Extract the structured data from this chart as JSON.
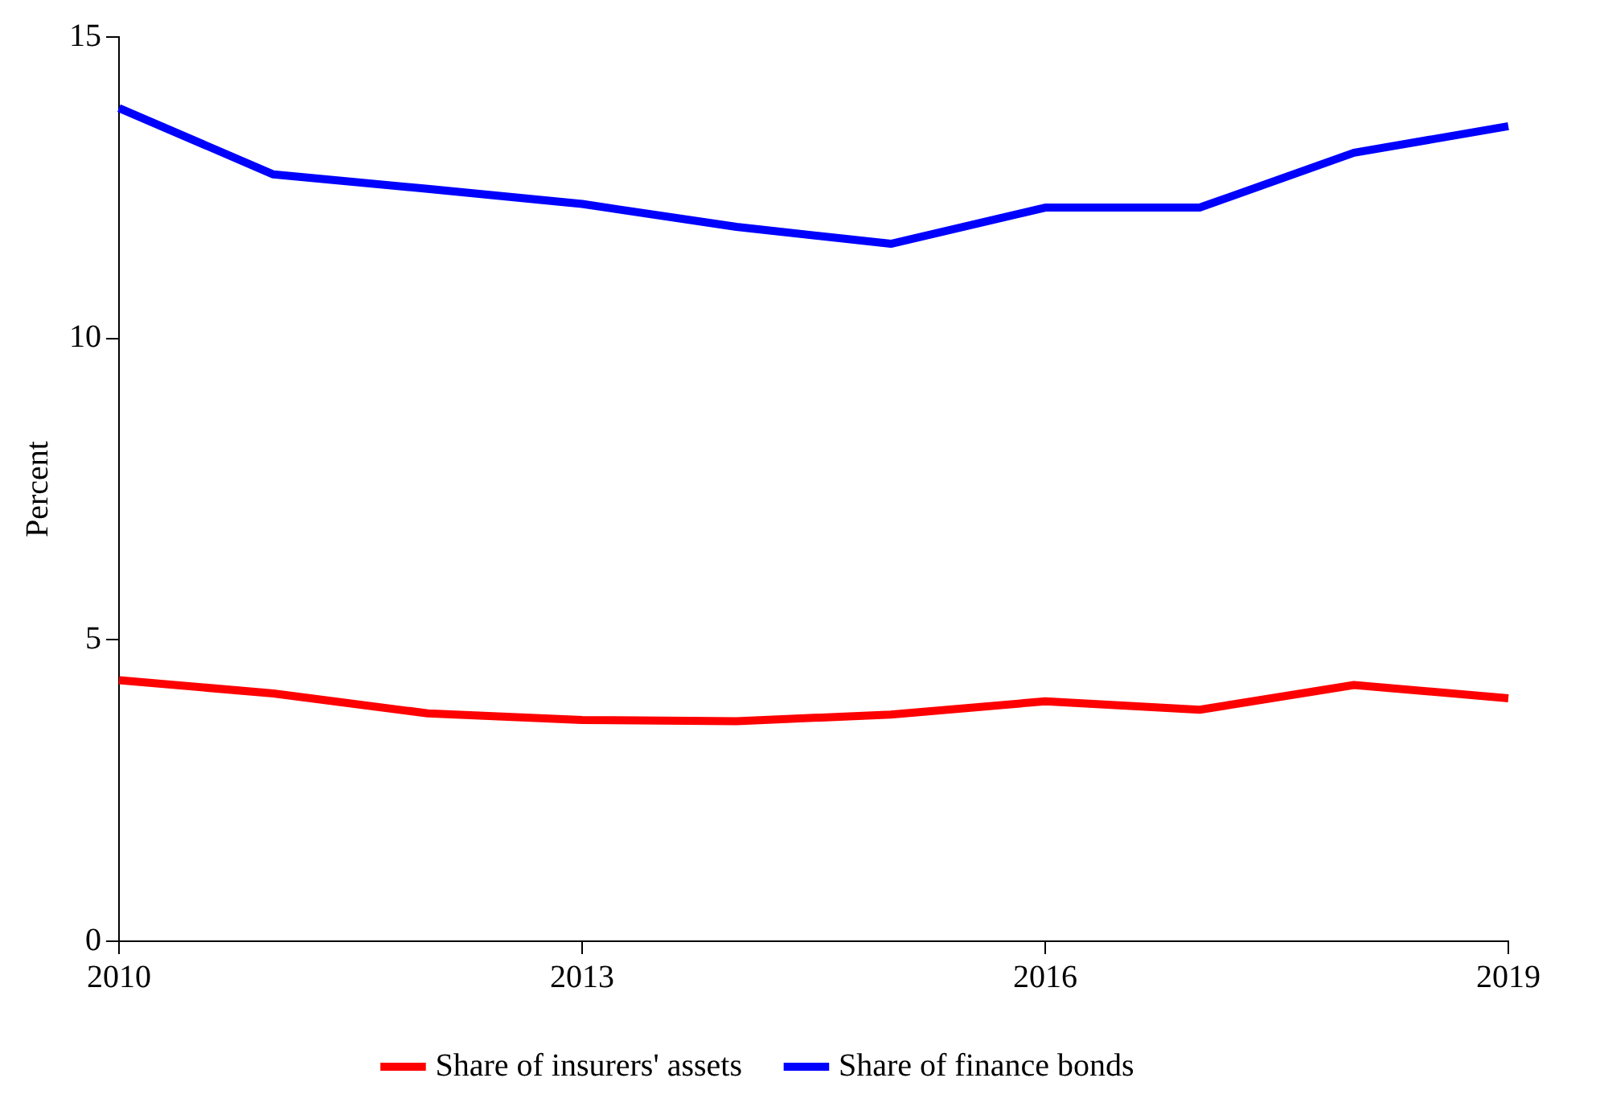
{
  "chart_data": {
    "type": "line",
    "ylabel": "Percent",
    "x": [
      2010,
      2011,
      2012,
      2013,
      2014,
      2015,
      2016,
      2017,
      2018,
      2019
    ],
    "series": [
      {
        "name": "Share of insurers' assets",
        "color": "#ff0000",
        "values": [
          4.33,
          4.11,
          3.78,
          3.67,
          3.65,
          3.76,
          3.98,
          3.84,
          4.25,
          4.03
        ]
      },
      {
        "name": "Share of finance bonds",
        "color": "#0000ff",
        "values": [
          13.82,
          12.72,
          12.48,
          12.23,
          11.85,
          11.57,
          12.17,
          12.17,
          13.08,
          13.52
        ]
      }
    ],
    "xlim": [
      2010,
      2019
    ],
    "xticks": [
      2010,
      2013,
      2016,
      2019
    ],
    "ylim": [
      0,
      15
    ],
    "yticks": [
      0,
      5,
      10,
      15
    ],
    "grid": false,
    "legend": "bottom",
    "marker": "none",
    "line_style": "solid"
  }
}
